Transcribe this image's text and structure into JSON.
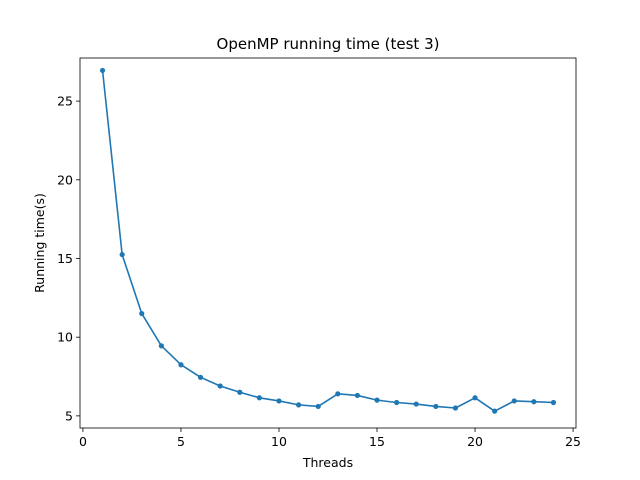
{
  "chart_data": {
    "type": "line",
    "title": "OpenMP running time (test 3)",
    "xlabel": "Threads",
    "ylabel": "Running time(s)",
    "xlim": [
      -0.15,
      25.15
    ],
    "ylim": [
      4.23,
      27.74
    ],
    "xticks": [
      0,
      5,
      10,
      15,
      20,
      25
    ],
    "yticks": [
      5,
      10,
      15,
      20,
      25
    ],
    "grid": false,
    "legend": false,
    "series": [
      {
        "color": "#1f77b4",
        "marker": "circle",
        "x": [
          1,
          2,
          3,
          4,
          5,
          6,
          7,
          8,
          9,
          10,
          11,
          12,
          13,
          14,
          15,
          16,
          17,
          18,
          19,
          20,
          21,
          22,
          23,
          24
        ],
        "y": [
          26.95,
          15.25,
          11.5,
          9.45,
          8.25,
          7.45,
          6.9,
          6.5,
          6.15,
          5.95,
          5.7,
          5.6,
          6.4,
          6.3,
          6.0,
          5.85,
          5.75,
          5.6,
          5.5,
          6.15,
          5.3,
          5.95,
          5.9,
          5.85
        ]
      }
    ]
  }
}
